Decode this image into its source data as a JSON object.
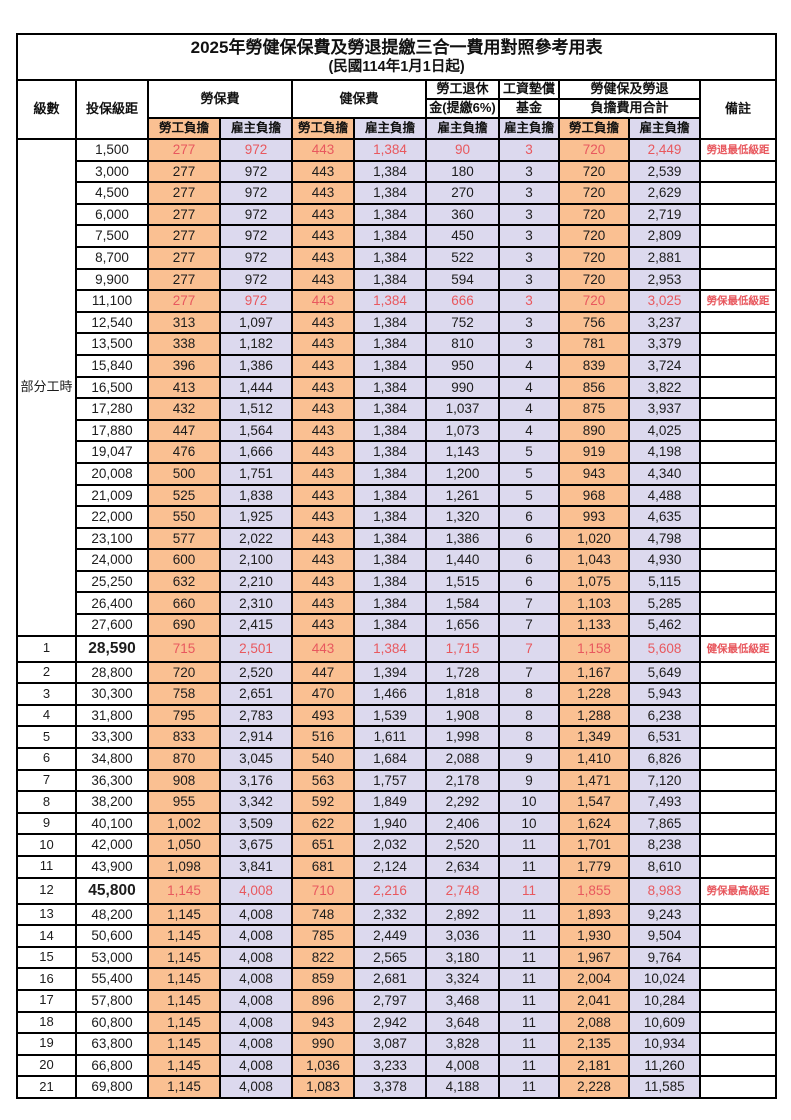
{
  "title": "2025年勞健保保費及勞退提繳三合一費用對照參考用表",
  "subtitle": "(民國114年1月1日起)",
  "header": {
    "level": "級數",
    "salary_bracket": "投保級距",
    "labor_insurance": "勞保費",
    "health_insurance": "健保費",
    "pension_line1": "勞工退休",
    "pension_line2": "金(提繳6%)",
    "wage_fund_line1": "工資墊償",
    "wage_fund_line2": "基金",
    "total_line1": "勞健保及勞退",
    "total_line2": "負擔費用合計",
    "note": "備註",
    "employee_burden": "勞工負擔",
    "employer_burden": "雇主負擔"
  },
  "part_time_label": "部分工時",
  "part_time_rowspan": 23,
  "colors": {
    "employee_column_bg": "#fac092",
    "employer_column_bg": "#dcd9ee",
    "highlight_text": "#e8585e",
    "border": "#000000"
  },
  "rows": [
    {
      "level": "",
      "salary": "1,500",
      "values": [
        "277",
        "972",
        "443",
        "1,384",
        "90",
        "3",
        "720",
        "2,449"
      ],
      "note": "勞退最低級距",
      "red": true,
      "bold": false
    },
    {
      "level": "",
      "salary": "3,000",
      "values": [
        "277",
        "972",
        "443",
        "1,384",
        "180",
        "3",
        "720",
        "2,539"
      ],
      "note": "",
      "red": false,
      "bold": false
    },
    {
      "level": "",
      "salary": "4,500",
      "values": [
        "277",
        "972",
        "443",
        "1,384",
        "270",
        "3",
        "720",
        "2,629"
      ],
      "note": "",
      "red": false,
      "bold": false
    },
    {
      "level": "",
      "salary": "6,000",
      "values": [
        "277",
        "972",
        "443",
        "1,384",
        "360",
        "3",
        "720",
        "2,719"
      ],
      "note": "",
      "red": false,
      "bold": false
    },
    {
      "level": "",
      "salary": "7,500",
      "values": [
        "277",
        "972",
        "443",
        "1,384",
        "450",
        "3",
        "720",
        "2,809"
      ],
      "note": "",
      "red": false,
      "bold": false
    },
    {
      "level": "",
      "salary": "8,700",
      "values": [
        "277",
        "972",
        "443",
        "1,384",
        "522",
        "3",
        "720",
        "2,881"
      ],
      "note": "",
      "red": false,
      "bold": false
    },
    {
      "level": "",
      "salary": "9,900",
      "values": [
        "277",
        "972",
        "443",
        "1,384",
        "594",
        "3",
        "720",
        "2,953"
      ],
      "note": "",
      "red": false,
      "bold": false
    },
    {
      "level": "",
      "salary": "11,100",
      "values": [
        "277",
        "972",
        "443",
        "1,384",
        "666",
        "3",
        "720",
        "3,025"
      ],
      "note": "勞保最低級距",
      "red": true,
      "bold": false
    },
    {
      "level": "",
      "salary": "12,540",
      "values": [
        "313",
        "1,097",
        "443",
        "1,384",
        "752",
        "3",
        "756",
        "3,237"
      ],
      "note": "",
      "red": false,
      "bold": false
    },
    {
      "level": "",
      "salary": "13,500",
      "values": [
        "338",
        "1,182",
        "443",
        "1,384",
        "810",
        "3",
        "781",
        "3,379"
      ],
      "note": "",
      "red": false,
      "bold": false
    },
    {
      "level": "",
      "salary": "15,840",
      "values": [
        "396",
        "1,386",
        "443",
        "1,384",
        "950",
        "4",
        "839",
        "3,724"
      ],
      "note": "",
      "red": false,
      "bold": false
    },
    {
      "level": "",
      "salary": "16,500",
      "values": [
        "413",
        "1,444",
        "443",
        "1,384",
        "990",
        "4",
        "856",
        "3,822"
      ],
      "note": "",
      "red": false,
      "bold": false
    },
    {
      "level": "",
      "salary": "17,280",
      "values": [
        "432",
        "1,512",
        "443",
        "1,384",
        "1,037",
        "4",
        "875",
        "3,937"
      ],
      "note": "",
      "red": false,
      "bold": false
    },
    {
      "level": "",
      "salary": "17,880",
      "values": [
        "447",
        "1,564",
        "443",
        "1,384",
        "1,073",
        "4",
        "890",
        "4,025"
      ],
      "note": "",
      "red": false,
      "bold": false
    },
    {
      "level": "",
      "salary": "19,047",
      "values": [
        "476",
        "1,666",
        "443",
        "1,384",
        "1,143",
        "5",
        "919",
        "4,198"
      ],
      "note": "",
      "red": false,
      "bold": false
    },
    {
      "level": "",
      "salary": "20,008",
      "values": [
        "500",
        "1,751",
        "443",
        "1,384",
        "1,200",
        "5",
        "943",
        "4,340"
      ],
      "note": "",
      "red": false,
      "bold": false
    },
    {
      "level": "",
      "salary": "21,009",
      "values": [
        "525",
        "1,838",
        "443",
        "1,384",
        "1,261",
        "5",
        "968",
        "4,488"
      ],
      "note": "",
      "red": false,
      "bold": false
    },
    {
      "level": "",
      "salary": "22,000",
      "values": [
        "550",
        "1,925",
        "443",
        "1,384",
        "1,320",
        "6",
        "993",
        "4,635"
      ],
      "note": "",
      "red": false,
      "bold": false
    },
    {
      "level": "",
      "salary": "23,100",
      "values": [
        "577",
        "2,022",
        "443",
        "1,384",
        "1,386",
        "6",
        "1,020",
        "4,798"
      ],
      "note": "",
      "red": false,
      "bold": false
    },
    {
      "level": "",
      "salary": "24,000",
      "values": [
        "600",
        "2,100",
        "443",
        "1,384",
        "1,440",
        "6",
        "1,043",
        "4,930"
      ],
      "note": "",
      "red": false,
      "bold": false
    },
    {
      "level": "",
      "salary": "25,250",
      "values": [
        "632",
        "2,210",
        "443",
        "1,384",
        "1,515",
        "6",
        "1,075",
        "5,115"
      ],
      "note": "",
      "red": false,
      "bold": false
    },
    {
      "level": "",
      "salary": "26,400",
      "values": [
        "660",
        "2,310",
        "443",
        "1,384",
        "1,584",
        "7",
        "1,103",
        "5,285"
      ],
      "note": "",
      "red": false,
      "bold": false
    },
    {
      "level": "",
      "salary": "27,600",
      "values": [
        "690",
        "2,415",
        "443",
        "1,384",
        "1,656",
        "7",
        "1,133",
        "5,462"
      ],
      "note": "",
      "red": false,
      "bold": false
    },
    {
      "level": "1",
      "salary": "28,590",
      "values": [
        "715",
        "2,501",
        "443",
        "1,384",
        "1,715",
        "7",
        "1,158",
        "5,608"
      ],
      "note": "健保最低級距",
      "red": true,
      "bold": true
    },
    {
      "level": "2",
      "salary": "28,800",
      "values": [
        "720",
        "2,520",
        "447",
        "1,394",
        "1,728",
        "7",
        "1,167",
        "5,649"
      ],
      "note": "",
      "red": false,
      "bold": false
    },
    {
      "level": "3",
      "salary": "30,300",
      "values": [
        "758",
        "2,651",
        "470",
        "1,466",
        "1,818",
        "8",
        "1,228",
        "5,943"
      ],
      "note": "",
      "red": false,
      "bold": false
    },
    {
      "level": "4",
      "salary": "31,800",
      "values": [
        "795",
        "2,783",
        "493",
        "1,539",
        "1,908",
        "8",
        "1,288",
        "6,238"
      ],
      "note": "",
      "red": false,
      "bold": false
    },
    {
      "level": "5",
      "salary": "33,300",
      "values": [
        "833",
        "2,914",
        "516",
        "1,611",
        "1,998",
        "8",
        "1,349",
        "6,531"
      ],
      "note": "",
      "red": false,
      "bold": false
    },
    {
      "level": "6",
      "salary": "34,800",
      "values": [
        "870",
        "3,045",
        "540",
        "1,684",
        "2,088",
        "9",
        "1,410",
        "6,826"
      ],
      "note": "",
      "red": false,
      "bold": false
    },
    {
      "level": "7",
      "salary": "36,300",
      "values": [
        "908",
        "3,176",
        "563",
        "1,757",
        "2,178",
        "9",
        "1,471",
        "7,120"
      ],
      "note": "",
      "red": false,
      "bold": false
    },
    {
      "level": "8",
      "salary": "38,200",
      "values": [
        "955",
        "3,342",
        "592",
        "1,849",
        "2,292",
        "10",
        "1,547",
        "7,493"
      ],
      "note": "",
      "red": false,
      "bold": false
    },
    {
      "level": "9",
      "salary": "40,100",
      "values": [
        "1,002",
        "3,509",
        "622",
        "1,940",
        "2,406",
        "10",
        "1,624",
        "7,865"
      ],
      "note": "",
      "red": false,
      "bold": false
    },
    {
      "level": "10",
      "salary": "42,000",
      "values": [
        "1,050",
        "3,675",
        "651",
        "2,032",
        "2,520",
        "11",
        "1,701",
        "8,238"
      ],
      "note": "",
      "red": false,
      "bold": false
    },
    {
      "level": "11",
      "salary": "43,900",
      "values": [
        "1,098",
        "3,841",
        "681",
        "2,124",
        "2,634",
        "11",
        "1,779",
        "8,610"
      ],
      "note": "",
      "red": false,
      "bold": false
    },
    {
      "level": "12",
      "salary": "45,800",
      "values": [
        "1,145",
        "4,008",
        "710",
        "2,216",
        "2,748",
        "11",
        "1,855",
        "8,983"
      ],
      "note": "勞保最高級距",
      "red": true,
      "bold": true
    },
    {
      "level": "13",
      "salary": "48,200",
      "values": [
        "1,145",
        "4,008",
        "748",
        "2,332",
        "2,892",
        "11",
        "1,893",
        "9,243"
      ],
      "note": "",
      "red": false,
      "bold": false
    },
    {
      "level": "14",
      "salary": "50,600",
      "values": [
        "1,145",
        "4,008",
        "785",
        "2,449",
        "3,036",
        "11",
        "1,930",
        "9,504"
      ],
      "note": "",
      "red": false,
      "bold": false
    },
    {
      "level": "15",
      "salary": "53,000",
      "values": [
        "1,145",
        "4,008",
        "822",
        "2,565",
        "3,180",
        "11",
        "1,967",
        "9,764"
      ],
      "note": "",
      "red": false,
      "bold": false
    },
    {
      "level": "16",
      "salary": "55,400",
      "values": [
        "1,145",
        "4,008",
        "859",
        "2,681",
        "3,324",
        "11",
        "2,004",
        "10,024"
      ],
      "note": "",
      "red": false,
      "bold": false
    },
    {
      "level": "17",
      "salary": "57,800",
      "values": [
        "1,145",
        "4,008",
        "896",
        "2,797",
        "3,468",
        "11",
        "2,041",
        "10,284"
      ],
      "note": "",
      "red": false,
      "bold": false
    },
    {
      "level": "18",
      "salary": "60,800",
      "values": [
        "1,145",
        "4,008",
        "943",
        "2,942",
        "3,648",
        "11",
        "2,088",
        "10,609"
      ],
      "note": "",
      "red": false,
      "bold": false
    },
    {
      "level": "19",
      "salary": "63,800",
      "values": [
        "1,145",
        "4,008",
        "990",
        "3,087",
        "3,828",
        "11",
        "2,135",
        "10,934"
      ],
      "note": "",
      "red": false,
      "bold": false
    },
    {
      "level": "20",
      "salary": "66,800",
      "values": [
        "1,145",
        "4,008",
        "1,036",
        "3,233",
        "4,008",
        "11",
        "2,181",
        "11,260"
      ],
      "note": "",
      "red": false,
      "bold": false
    },
    {
      "level": "21",
      "salary": "69,800",
      "values": [
        "1,145",
        "4,008",
        "1,083",
        "3,378",
        "4,188",
        "11",
        "2,228",
        "11,585"
      ],
      "note": "",
      "red": false,
      "bold": false
    }
  ]
}
